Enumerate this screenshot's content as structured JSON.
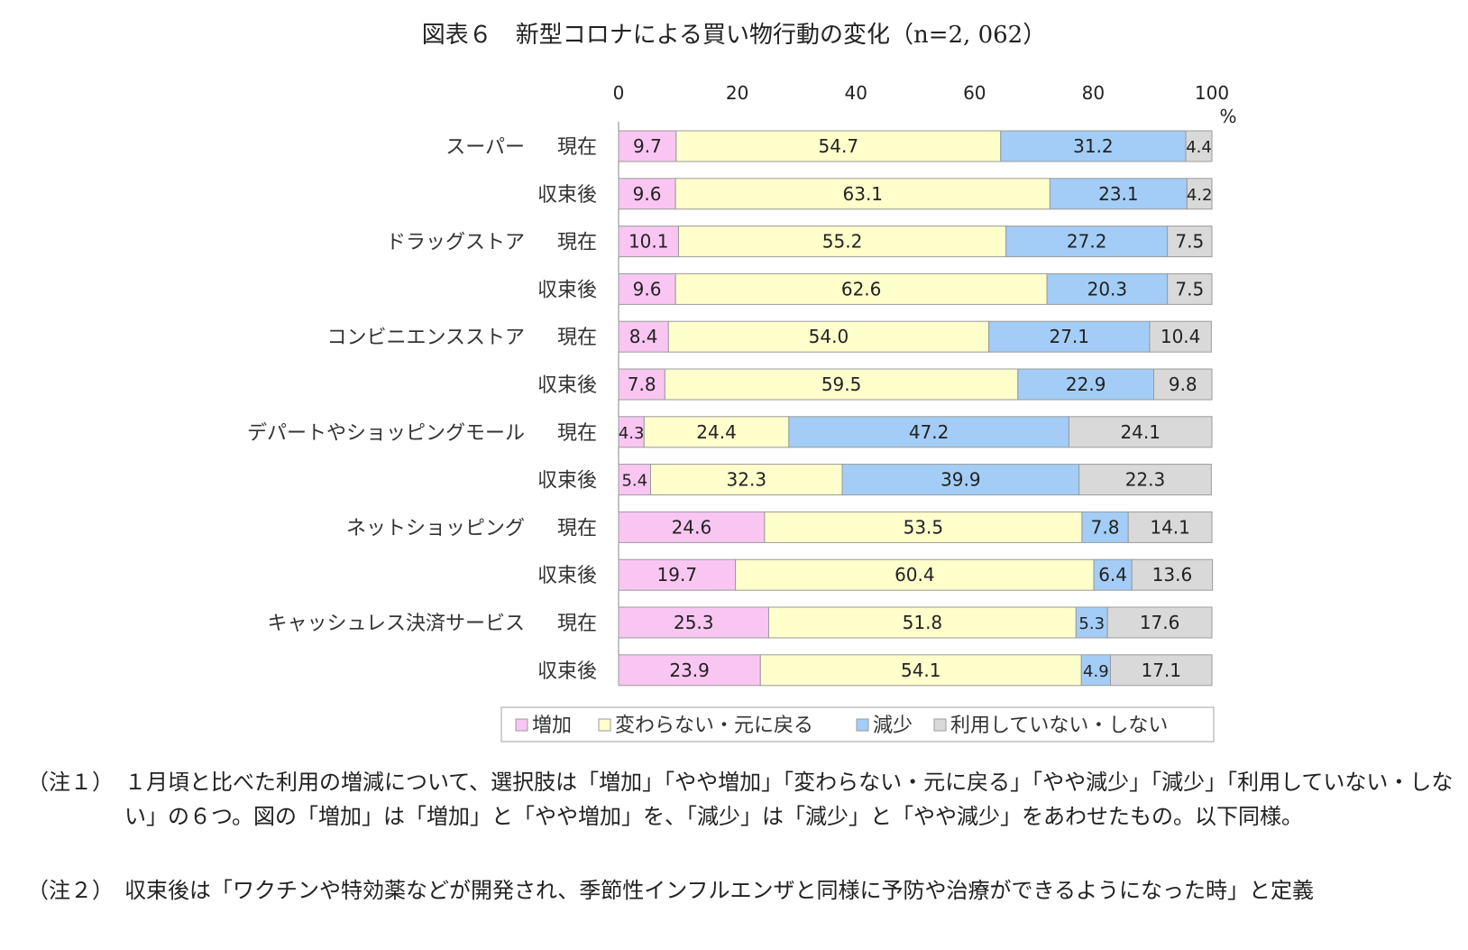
{
  "title": "図表６　新型コロナによる買い物行動の変化（n=2, 062）",
  "chart_data": {
    "type": "bar",
    "orientation": "horizontal",
    "stacked": true,
    "title": "図表６　新型コロナによる買い物行動の変化（n=2, 062）",
    "x_axis": {
      "range": [
        0,
        100
      ],
      "ticks": [
        0,
        20,
        40,
        60,
        80,
        100
      ],
      "unit": "%"
    },
    "categories": [
      {
        "group": "スーパー",
        "period": "現在"
      },
      {
        "group": "",
        "period": "収束後"
      },
      {
        "group": "ドラッグストア",
        "period": "現在"
      },
      {
        "group": "",
        "period": "収束後"
      },
      {
        "group": "コンビニエンスストア",
        "period": "現在"
      },
      {
        "group": "",
        "period": "収束後"
      },
      {
        "group": "デパートやショッピングモール",
        "period": "現在"
      },
      {
        "group": "",
        "period": "収束後"
      },
      {
        "group": "ネットショッピング",
        "period": "現在"
      },
      {
        "group": "",
        "period": "収束後"
      },
      {
        "group": "キャッシュレス決済サービス",
        "period": "現在"
      },
      {
        "group": "",
        "period": "収束後"
      }
    ],
    "series": [
      {
        "name": "増加",
        "color": "#f9c6f2",
        "values": [
          9.7,
          9.6,
          10.1,
          9.6,
          8.4,
          7.8,
          4.3,
          5.4,
          24.6,
          19.7,
          25.3,
          23.9
        ]
      },
      {
        "name": "変わらない・元に戻る",
        "color": "#ffffcc",
        "values": [
          54.7,
          63.1,
          55.2,
          62.6,
          54.0,
          59.5,
          24.4,
          32.3,
          53.5,
          60.4,
          51.8,
          54.1
        ]
      },
      {
        "name": "減少",
        "color": "#a3cdf6",
        "values": [
          31.2,
          23.1,
          27.2,
          20.3,
          27.1,
          22.9,
          47.2,
          39.9,
          7.8,
          6.4,
          5.3,
          4.9
        ]
      },
      {
        "name": "利用していない・しない",
        "color": "#d9d9d9",
        "values": [
          4.4,
          4.2,
          7.5,
          7.5,
          10.4,
          9.8,
          24.1,
          22.3,
          14.1,
          13.6,
          17.6,
          17.1
        ]
      }
    ],
    "legend_position": "bottom",
    "grid": false
  },
  "notes": [
    {
      "label": "（注１）",
      "text": "１月頃と比べた利用の増減について、選択肢は「増加」「やや増加」「変わらない・元に戻る」「やや減少」「減少」「利用していない・しない」の６つ。図の「増加」は「増加」と「やや増加」を、「減少」は「減少」と「やや減少」をあわせたもの。以下同様。"
    },
    {
      "label": "（注２）",
      "text": "収束後は「ワクチンや特効薬などが開発され、季節性インフルエンザと同様に予防や治療ができるようになった時」と定義"
    }
  ]
}
